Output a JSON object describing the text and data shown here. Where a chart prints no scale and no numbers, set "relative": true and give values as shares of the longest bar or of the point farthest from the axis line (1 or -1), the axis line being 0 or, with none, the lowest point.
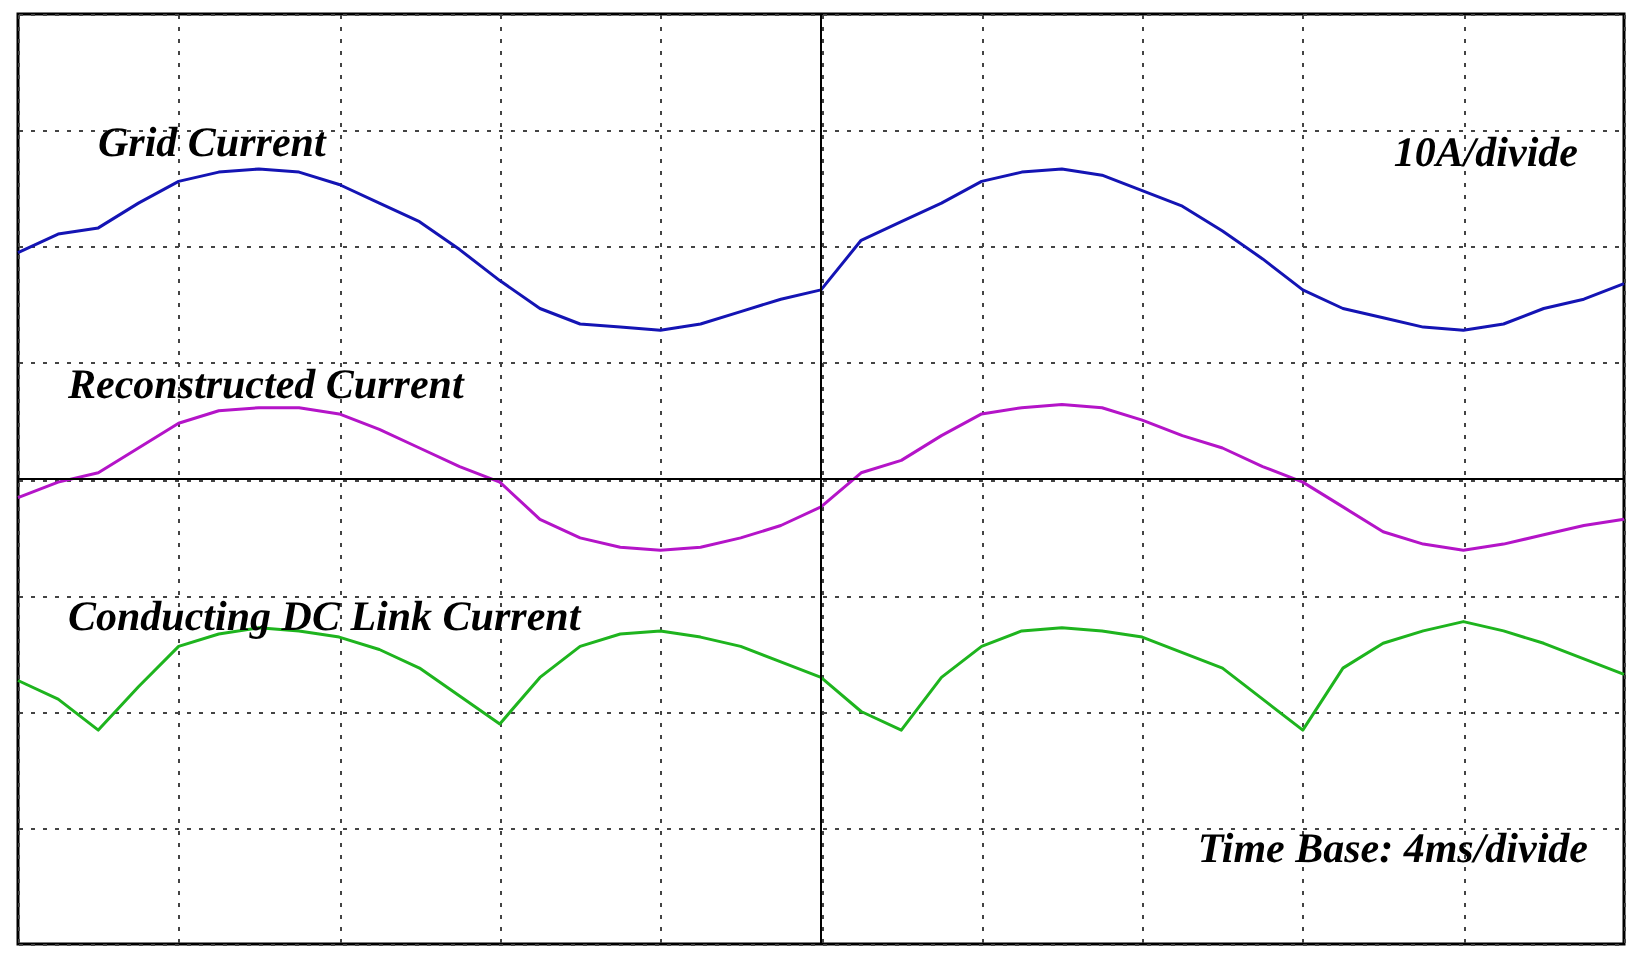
{
  "chart_data": {
    "type": "line",
    "relative": true,
    "grid": true,
    "legend": false,
    "categories": [
      null,
      null,
      null,
      null,
      null,
      null,
      null,
      null,
      null,
      null,
      null,
      null,
      null,
      null,
      null,
      null,
      null,
      null,
      null,
      null,
      null,
      null,
      null,
      null,
      null,
      null,
      null,
      null,
      null,
      null,
      null,
      null,
      null,
      null,
      null,
      null,
      null,
      null,
      null,
      null,
      null
    ],
    "annotations": [
      "10A/divide",
      "Time Base: 4ms/divide"
    ],
    "series": [
      {
        "name": "Grid Current",
        "color": "#1414b4",
        "values": [
          0.73,
          0.79,
          0.81,
          0.89,
          0.96,
          0.99,
          1.0,
          0.99,
          0.95,
          0.89,
          0.83,
          0.74,
          0.64,
          0.55,
          0.5,
          0.49,
          0.48,
          0.5,
          0.54,
          0.58,
          0.61,
          0.77,
          0.83,
          0.89,
          0.96,
          0.99,
          1.0,
          0.98,
          0.93,
          0.88,
          0.8,
          0.71,
          0.61,
          0.55,
          0.52,
          0.49,
          0.48,
          0.5,
          0.55,
          0.58,
          0.63
        ]
      },
      {
        "name": "Reconstructed Current",
        "color": "#b414c8",
        "values": [
          -0.06,
          -0.01,
          0.02,
          0.1,
          0.18,
          0.22,
          0.23,
          0.23,
          0.21,
          0.16,
          0.1,
          0.04,
          -0.01,
          -0.13,
          -0.19,
          -0.22,
          -0.23,
          -0.22,
          -0.19,
          -0.15,
          -0.09,
          0.02,
          0.06,
          0.14,
          0.21,
          0.23,
          0.24,
          0.23,
          0.19,
          0.14,
          0.1,
          0.04,
          -0.01,
          -0.09,
          -0.17,
          -0.21,
          -0.23,
          -0.21,
          -0.18,
          -0.15,
          -0.13
        ]
      },
      {
        "name": "Conducting DC Link Current",
        "color": "#1eb41e",
        "values": [
          -0.65,
          -0.71,
          -0.81,
          -0.67,
          -0.54,
          -0.5,
          -0.48,
          -0.49,
          -0.51,
          -0.55,
          -0.61,
          -0.7,
          -0.79,
          -0.64,
          -0.54,
          -0.5,
          -0.49,
          -0.51,
          -0.54,
          -0.59,
          -0.64,
          -0.75,
          -0.81,
          -0.64,
          -0.54,
          -0.49,
          -0.48,
          -0.49,
          -0.51,
          -0.56,
          -0.61,
          -0.71,
          -0.81,
          -0.61,
          -0.53,
          -0.49,
          -0.46,
          -0.49,
          -0.53,
          -0.58,
          -0.63
        ]
      }
    ]
  }
}
